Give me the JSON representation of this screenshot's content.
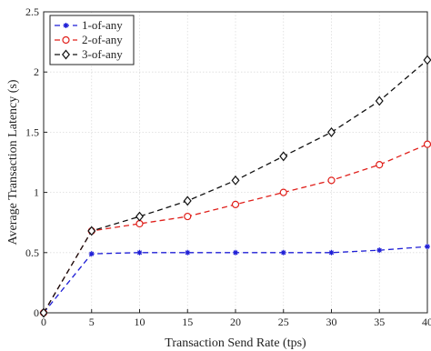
{
  "chart_data": {
    "type": "line",
    "title": "",
    "xlabel": "Transaction Send Rate (tps)",
    "ylabel": "Average Transaction Latency (s)",
    "xlim": [
      0,
      40
    ],
    "ylim": [
      0,
      2.5
    ],
    "xticks": [
      0,
      5,
      10,
      15,
      20,
      25,
      30,
      35,
      40
    ],
    "yticks": [
      0,
      0.5,
      1,
      1.5,
      2,
      2.5
    ],
    "xtick_labels": [
      "0",
      "5",
      "10",
      "15",
      "20",
      "25",
      "30",
      "35",
      "40"
    ],
    "ytick_labels": [
      "0",
      "0.5",
      "1",
      "1.5",
      "2",
      "2.5"
    ],
    "grid": true,
    "legend_position": "top-left",
    "x": [
      0,
      5,
      10,
      15,
      20,
      25,
      30,
      35,
      40
    ],
    "series": [
      {
        "name": "1-of-any",
        "color": "#1f1fd6",
        "marker": "asterisk",
        "values": [
          0,
          0.49,
          0.5,
          0.5,
          0.5,
          0.5,
          0.5,
          0.52,
          0.55
        ]
      },
      {
        "name": "2-of-any",
        "color": "#e0201b",
        "marker": "circle",
        "values": [
          0,
          0.68,
          0.74,
          0.8,
          0.9,
          1.0,
          1.1,
          1.23,
          1.4
        ]
      },
      {
        "name": "3-of-any",
        "color": "#111111",
        "marker": "diamond",
        "values": [
          0,
          0.68,
          0.8,
          0.93,
          1.1,
          1.3,
          1.5,
          1.76,
          2.1
        ]
      }
    ]
  }
}
